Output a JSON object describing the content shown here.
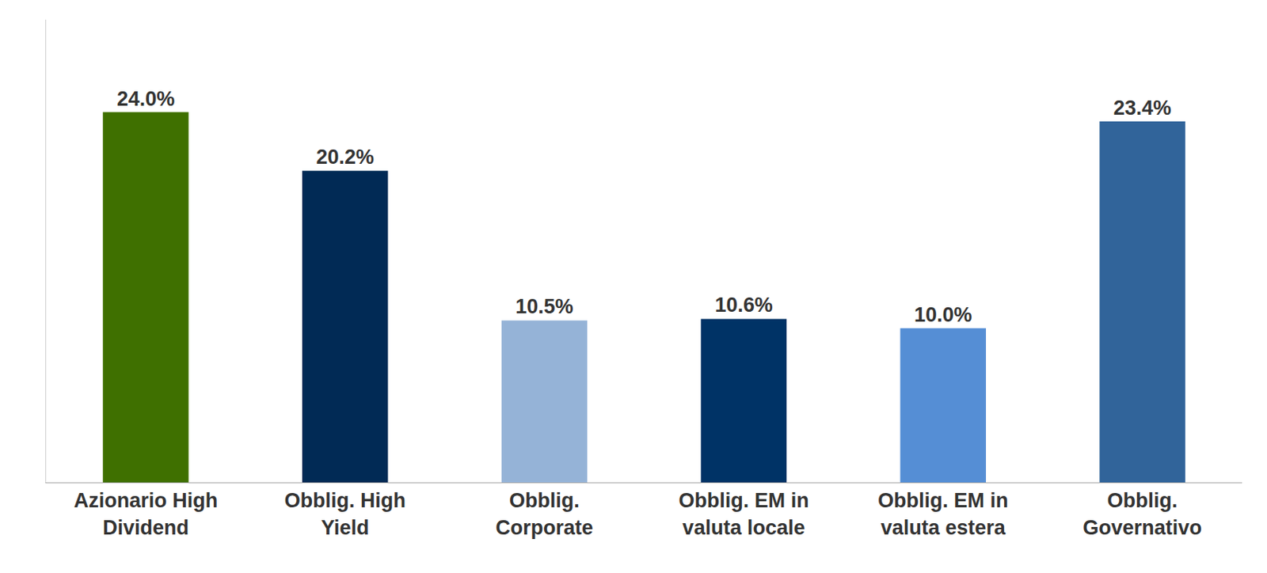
{
  "chart_data": {
    "type": "bar",
    "categories": [
      "Azionario High Dividend",
      "Obblig. High Yield",
      "Obblig. Corporate",
      "Obblig. EM in valuta locale",
      "Obblig. EM in valuta estera",
      "Obblig. Governativo"
    ],
    "values": [
      24.0,
      20.2,
      10.5,
      10.6,
      10.0,
      23.4
    ],
    "value_labels": [
      "24.0%",
      "20.2%",
      "10.5%",
      "10.6%",
      "10.0%",
      "23.4%"
    ],
    "colors": [
      "#3f7000",
      "#012a55",
      "#95b3d7",
      "#003366",
      "#558ed5",
      "#31649a"
    ],
    "ylim": [
      0,
      30
    ],
    "grid": false,
    "data_labels": true,
    "tick_labels": "x"
  }
}
